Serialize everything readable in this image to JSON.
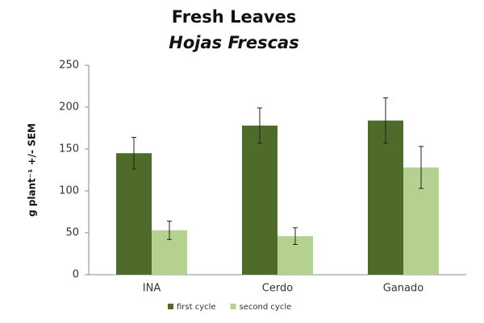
{
  "chart_data": {
    "type": "bar",
    "title": "Fresh Leaves",
    "subtitle": "Hojas Frescas",
    "y_label": "g plant⁻¹ +/- SEM",
    "categories": [
      "INA",
      "Cerdo",
      "Ganado"
    ],
    "series": [
      {
        "name": "first cycle",
        "color": "#4e6b2a",
        "values": [
          145,
          178,
          184
        ],
        "errors": [
          19,
          21,
          27
        ]
      },
      {
        "name": "second cycle",
        "color": "#b5d190",
        "values": [
          53,
          46,
          128
        ],
        "errors": [
          11,
          10,
          25
        ]
      }
    ],
    "ylim": [
      0,
      250
    ],
    "yticks": [
      0,
      50,
      100,
      150,
      200,
      250
    ],
    "grid": false,
    "legend": "bottom"
  }
}
